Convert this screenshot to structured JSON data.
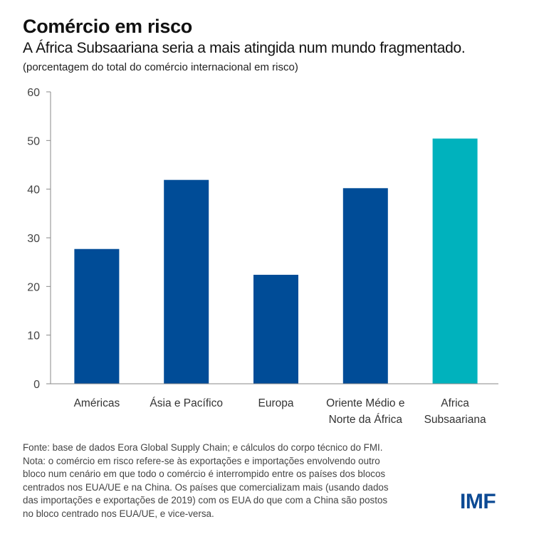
{
  "header": {
    "title": "Comércio em risco",
    "subtitle": "A África Subsaariana seria a mais atingida num mundo fragmentado.",
    "units": "(porcentagem do total do comércio internacional em risco)"
  },
  "chart_data": {
    "type": "bar",
    "title": "Comércio em risco",
    "subtitle": "A África Subsaariana seria a mais atingida num mundo fragmentado.",
    "ylabel": "(porcentagem do total do comércio internacional em risco)",
    "xlabel": "",
    "categories": [
      [
        "Américas"
      ],
      [
        "Ásia e Pacífico"
      ],
      [
        "Europa"
      ],
      [
        "Oriente Médio e",
        "Norte da África"
      ],
      [
        "Africa",
        "Subsaariana"
      ]
    ],
    "values": [
      27.7,
      41.9,
      22.4,
      40.2,
      50.4
    ],
    "bar_colors": [
      "#004c97",
      "#004c97",
      "#004c97",
      "#004c97",
      "#00b2bd"
    ],
    "ylim": [
      0,
      60
    ],
    "yticks": [
      0,
      10,
      20,
      30,
      40,
      50,
      60
    ],
    "grid": false,
    "legend": "none"
  },
  "footer": {
    "notes": [
      "Fonte: base de dados Eora Global Supply Chain; e cálculos do corpo técnico do FMI.",
      "Nota: o comércio em risco refere-se às exportações e importações envolvendo outro",
      "bloco num cenário em que todo o comércio é interrompido entre os países dos blocos",
      "centrados nos EUA/UE e na China. Os países que comercializam mais (usando dados",
      "das importações e exportações de 2019) com os EUA do que com a China são postos",
      "no bloco centrado nos EUA/UE, e vice-versa."
    ],
    "logo": "IMF"
  },
  "colors": {
    "primary_bar": "#004c97",
    "highlight_bar": "#00b2bd",
    "logo": "#0c4a94"
  }
}
